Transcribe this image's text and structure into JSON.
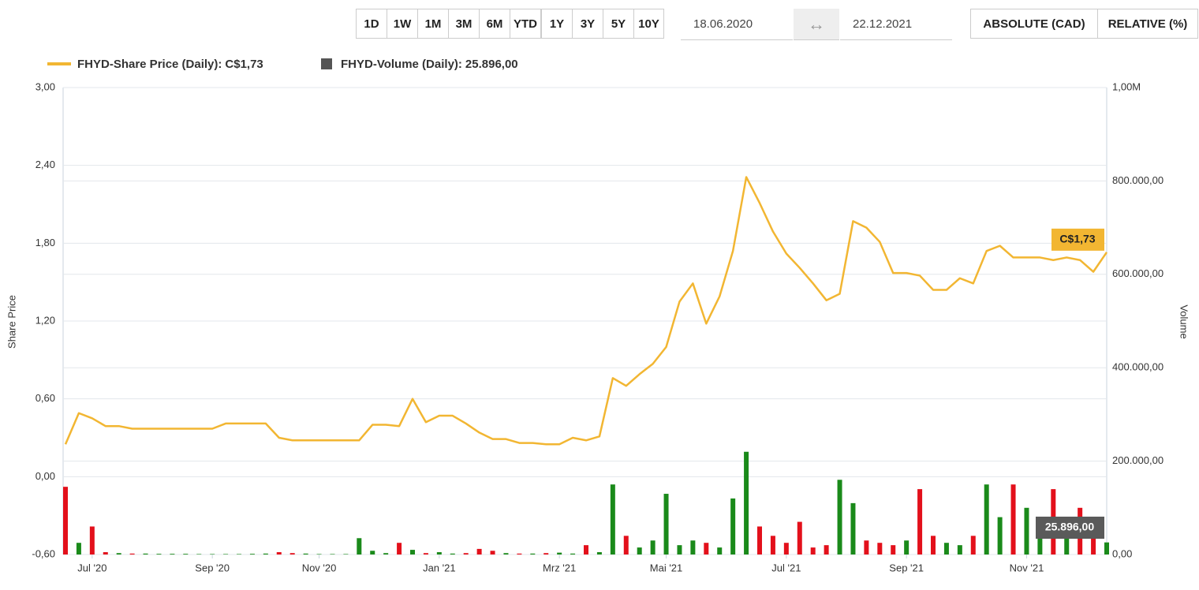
{
  "controls": {
    "ranges": [
      "1D",
      "1W",
      "1M",
      "3M",
      "6M",
      "YTD",
      "1Y",
      "3Y",
      "5Y",
      "10Y"
    ],
    "from": "18.06.2020",
    "to": "22.12.2021",
    "modes": [
      "ABSOLUTE (CAD)",
      "RELATIVE (%)"
    ]
  },
  "chart_data": {
    "type": "line-volume",
    "grid": true,
    "y_label": "Share Price",
    "y2_label": "Volume",
    "x": [
      null,
      null,
      "Jul '20",
      null,
      null,
      null,
      null,
      null,
      null,
      null,
      null,
      "Sep '20",
      null,
      null,
      null,
      null,
      null,
      null,
      null,
      "Nov '20",
      null,
      null,
      null,
      null,
      null,
      null,
      null,
      null,
      "Jan '21",
      null,
      null,
      null,
      null,
      null,
      null,
      null,
      null,
      "Mrz '21",
      null,
      null,
      null,
      null,
      null,
      null,
      null,
      "Mai '21",
      null,
      null,
      null,
      null,
      null,
      null,
      null,
      null,
      "Jul '21",
      null,
      null,
      null,
      null,
      null,
      null,
      null,
      null,
      "Sep '21",
      null,
      null,
      null,
      null,
      null,
      null,
      null,
      null,
      "Nov '21",
      null,
      null,
      null,
      null,
      null,
      null
    ],
    "ylim": [
      -0.6,
      3.0
    ],
    "yticks": [
      {
        "value": -0.6,
        "label": "-0,60"
      },
      {
        "value": 0,
        "label": "0,00"
      },
      {
        "value": 0.6,
        "label": "0,60"
      },
      {
        "value": 1.2,
        "label": "1,20"
      },
      {
        "value": 1.8,
        "label": "1,80"
      },
      {
        "value": 2.4,
        "label": "2,40"
      },
      {
        "value": 3.0,
        "label": "3,00"
      }
    ],
    "y2lim": [
      0,
      1000000
    ],
    "y2ticks": [
      {
        "value": 0,
        "label": "0,00"
      },
      {
        "value": 200000,
        "label": "200.000,00"
      },
      {
        "value": 400000,
        "label": "400.000,00"
      },
      {
        "value": 600000,
        "label": "600.000,00"
      },
      {
        "value": 800000,
        "label": "800.000,00"
      },
      {
        "value": 1000000,
        "label": "1,00M"
      }
    ],
    "series": [
      {
        "name": "FHYD-Share Price (Daily):",
        "color": "#f2b632",
        "values": [
          0.25,
          0.49,
          0.45,
          0.39,
          0.39,
          0.37,
          0.37,
          0.37,
          0.37,
          0.37,
          0.37,
          0.37,
          0.41,
          0.41,
          0.41,
          0.41,
          0.3,
          0.28,
          0.28,
          0.28,
          0.28,
          0.28,
          0.28,
          0.4,
          0.4,
          0.39,
          0.6,
          0.42,
          0.47,
          0.47,
          0.41,
          0.34,
          0.29,
          0.29,
          0.26,
          0.26,
          0.25,
          0.25,
          0.3,
          0.28,
          0.31,
          0.76,
          0.7,
          0.79,
          0.87,
          1.0,
          1.35,
          1.49,
          1.18,
          1.39,
          1.74,
          2.31,
          2.11,
          1.89,
          1.72,
          1.61,
          1.49,
          1.36,
          1.41,
          1.97,
          1.92,
          1.81,
          1.57,
          1.57,
          1.55,
          1.44,
          1.44,
          1.53,
          1.49,
          1.74,
          1.78,
          1.69,
          1.69,
          1.69,
          1.67,
          1.69,
          1.67,
          1.58,
          1.73
        ],
        "value_labels": [
          null,
          null,
          null,
          null,
          null,
          null,
          null,
          null,
          null,
          null,
          null,
          null,
          null,
          null,
          null,
          null,
          null,
          null,
          null,
          null,
          null,
          null,
          null,
          null,
          null,
          null,
          null,
          null,
          null,
          null,
          null,
          null,
          null,
          null,
          null,
          null,
          null,
          null,
          null,
          null,
          null,
          null,
          null,
          null,
          null,
          null,
          null,
          null,
          null,
          null,
          null,
          null,
          null,
          null,
          null,
          null,
          null,
          null,
          null,
          null,
          null,
          null,
          null,
          null,
          null,
          null,
          null,
          null,
          null,
          null,
          null,
          null,
          null,
          null,
          null,
          null,
          null,
          null,
          "C$1,73"
        ]
      },
      {
        "name": "FHYD-Volume (Daily):",
        "color": "#555555",
        "axis": "y2",
        "up_color": "#1a8a1a",
        "down_color": "#e3101b",
        "values": [
          145000,
          25000,
          60000,
          5000,
          3000,
          2000,
          2000,
          1500,
          1500,
          1500,
          1000,
          1000,
          1000,
          1000,
          1500,
          2000,
          5000,
          3000,
          2000,
          1000,
          1000,
          1000,
          35000,
          8000,
          3000,
          25000,
          10000,
          3000,
          5000,
          2000,
          3000,
          12000,
          8000,
          3000,
          2000,
          2000,
          3000,
          4000,
          2000,
          20000,
          5000,
          150000,
          40000,
          15000,
          30000,
          130000,
          20000,
          30000,
          25000,
          15000,
          120000,
          220000,
          60000,
          40000,
          25000,
          70000,
          15000,
          20000,
          160000,
          110000,
          30000,
          25000,
          20000,
          30000,
          140000,
          40000,
          25000,
          20000,
          40000,
          150000,
          80000,
          150000,
          100000,
          60000,
          140000,
          40000,
          100000,
          60000,
          25896
        ],
        "value_labels": [
          null,
          null,
          null,
          null,
          null,
          null,
          null,
          null,
          null,
          null,
          null,
          null,
          null,
          null,
          null,
          null,
          null,
          null,
          null,
          null,
          null,
          null,
          null,
          null,
          null,
          null,
          null,
          null,
          null,
          null,
          null,
          null,
          null,
          null,
          null,
          null,
          null,
          null,
          null,
          null,
          null,
          null,
          null,
          null,
          null,
          null,
          null,
          null,
          null,
          null,
          null,
          null,
          null,
          null,
          null,
          null,
          null,
          null,
          null,
          null,
          null,
          null,
          null,
          null,
          null,
          null,
          null,
          null,
          null,
          null,
          null,
          null,
          null,
          null,
          null,
          null,
          null,
          null,
          "25.896,00"
        ]
      }
    ]
  }
}
